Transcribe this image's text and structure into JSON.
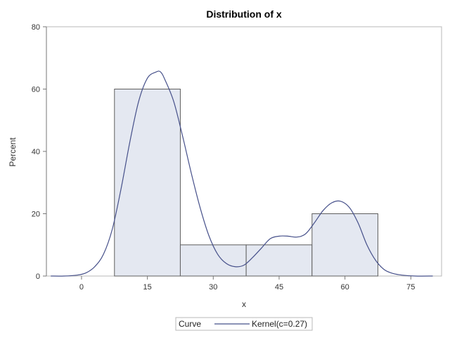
{
  "chart_data": {
    "type": "bar",
    "title": "Distribution of x",
    "xlabel": "x",
    "ylabel": "Percent",
    "xlim": [
      -8,
      82
    ],
    "ylim": [
      0,
      80
    ],
    "x_ticks": [
      "0",
      "15",
      "30",
      "45",
      "60",
      "75"
    ],
    "y_ticks": [
      "0",
      "20",
      "40",
      "60",
      "80"
    ],
    "histogram": {
      "bin_width": 15,
      "bins": [
        {
          "midpoint": 15,
          "percent": 60
        },
        {
          "midpoint": 30,
          "percent": 10
        },
        {
          "midpoint": 45,
          "percent": 10
        },
        {
          "midpoint": 60,
          "percent": 20
        }
      ]
    },
    "series": [
      {
        "name": "Kernel(c=0.27)",
        "x": [
          -7,
          -4,
          -1,
          1,
          3,
          5,
          7,
          9,
          11,
          13,
          15,
          17,
          18,
          19,
          21,
          23,
          25,
          27,
          29,
          31,
          33,
          35,
          37,
          39,
          41,
          43,
          45,
          47,
          49,
          51,
          53,
          55,
          57,
          59,
          61,
          63,
          65,
          67,
          69,
          71,
          73,
          76,
          80
        ],
        "y": [
          0,
          0,
          0.3,
          1,
          3,
          7,
          15,
          28,
          43,
          56,
          63.5,
          65.5,
          65.5,
          63,
          56,
          45,
          33,
          22,
          13,
          7,
          4,
          3,
          3.5,
          6,
          9,
          12,
          12.8,
          12.8,
          12.5,
          13.5,
          17,
          21,
          23.5,
          24,
          22,
          17,
          10,
          5,
          2,
          0.8,
          0.3,
          0,
          0
        ]
      }
    ],
    "legend": {
      "title": "Curve",
      "placement": "bottom-center",
      "entries": [
        "Kernel(c=0.27)"
      ]
    },
    "colors": {
      "bar_fill": "#e4e8f1",
      "bar_stroke": "#5f5f5f",
      "curve": "#46508a"
    }
  }
}
